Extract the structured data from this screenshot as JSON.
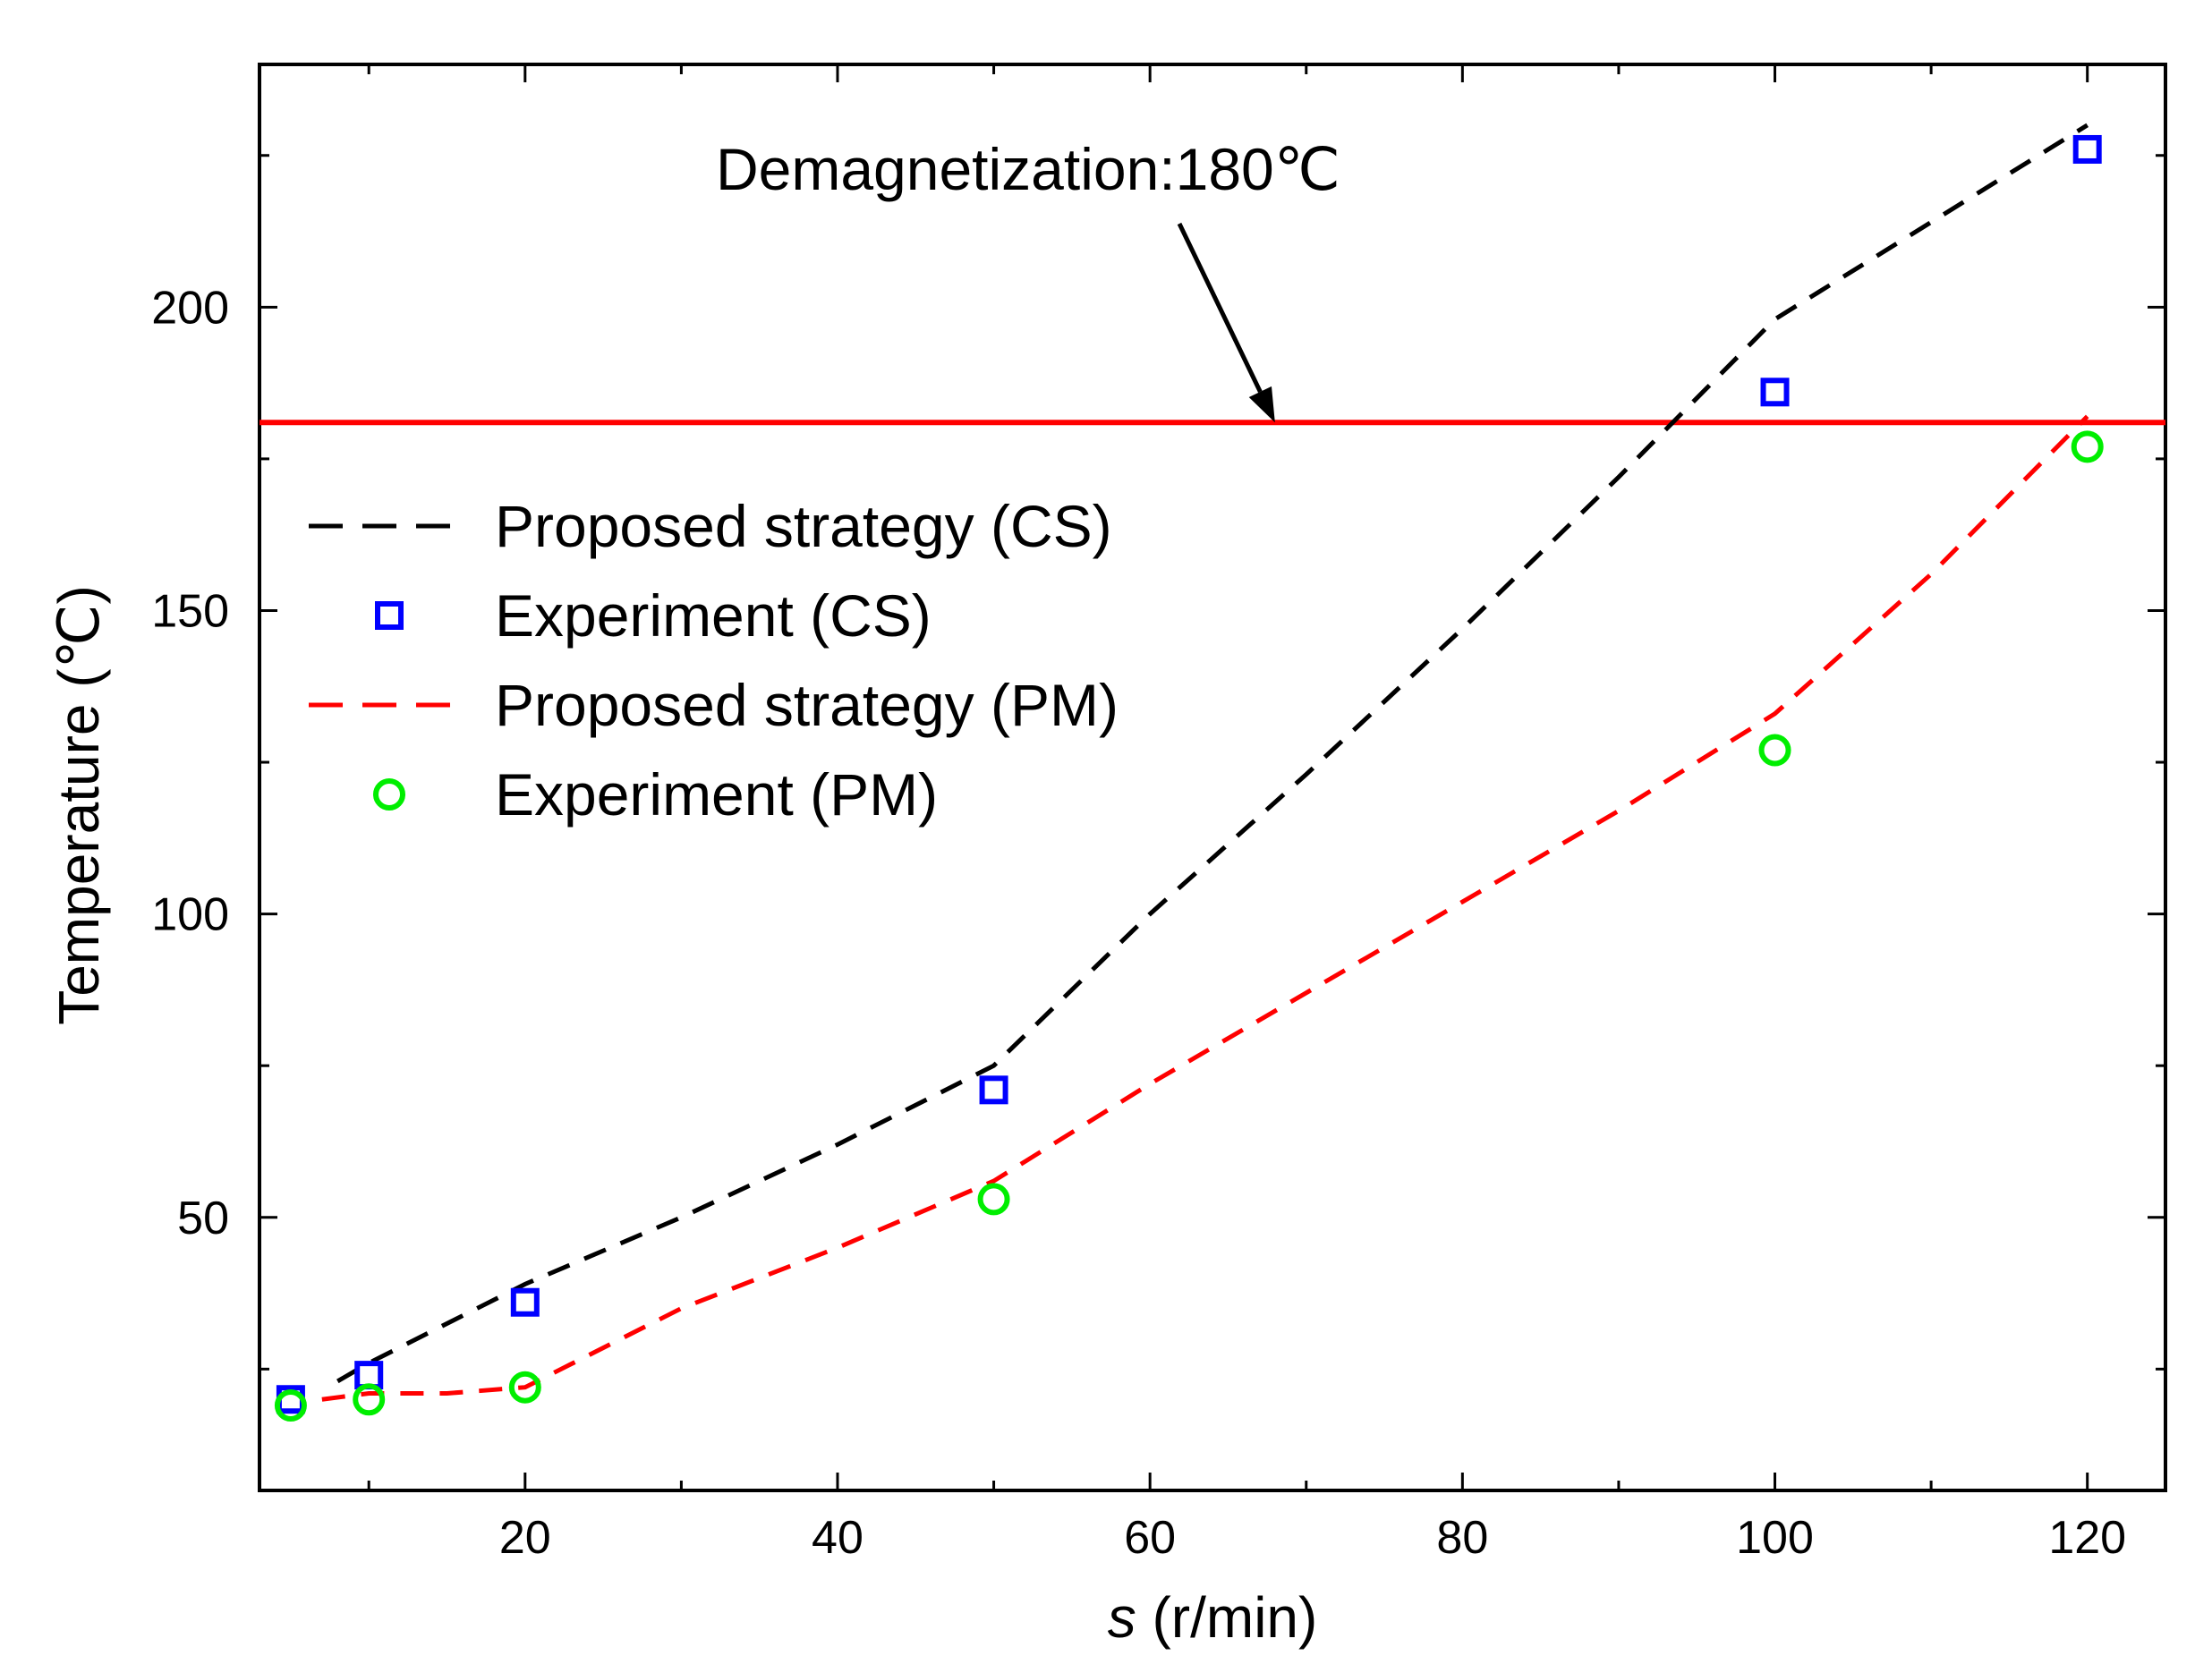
{
  "chart_data": {
    "type": "line",
    "xlabel_var": "s",
    "xlabel_unit": "(r/min)",
    "ylabel": "Temperature (℃)",
    "xlim": [
      3,
      125
    ],
    "ylim": [
      5,
      240
    ],
    "xticks": [
      20,
      40,
      60,
      80,
      100,
      120
    ],
    "yticks": [
      50,
      100,
      150,
      200
    ],
    "grid": false,
    "legend_position": "left",
    "series": [
      {
        "name": "Proposed strategy (CS)",
        "kind": "line",
        "style": "dashed",
        "color": "#000000",
        "x": [
          8,
          10,
          20,
          30,
          40,
          50,
          60,
          70,
          80,
          90,
          100,
          110,
          120
        ],
        "y": [
          23,
          26,
          39,
          50,
          62,
          75,
          100,
          123,
          147,
          172,
          198,
          214,
          230
        ]
      },
      {
        "name": "Experiment (CS)",
        "kind": "scatter",
        "marker": "square",
        "color": "#0000ff",
        "x": [
          5,
          10,
          20,
          50,
          100,
          120
        ],
        "y": [
          20,
          24,
          36,
          71,
          186,
          226
        ]
      },
      {
        "name": "Proposed strategy (PM)",
        "kind": "line",
        "style": "dashed",
        "color": "#ff0000",
        "x": [
          7,
          10,
          15,
          20,
          30,
          40,
          50,
          60,
          70,
          80,
          90,
          100,
          110,
          120
        ],
        "y": [
          20,
          21,
          21,
          22,
          35,
          45,
          56,
          72,
          87,
          102,
          117,
          133,
          156,
          182
        ]
      },
      {
        "name": "Experiment (PM)",
        "kind": "scatter",
        "marker": "circle",
        "color": "#00ee00",
        "x": [
          5,
          10,
          20,
          50,
          100,
          120
        ],
        "y": [
          19,
          20,
          22,
          53,
          127,
          177
        ]
      }
    ],
    "reference_line": {
      "y": 181,
      "color": "#ff0000"
    },
    "annotation": {
      "text": "Demagnetization:180℃",
      "arrow_target": [
        68,
        181
      ]
    }
  }
}
